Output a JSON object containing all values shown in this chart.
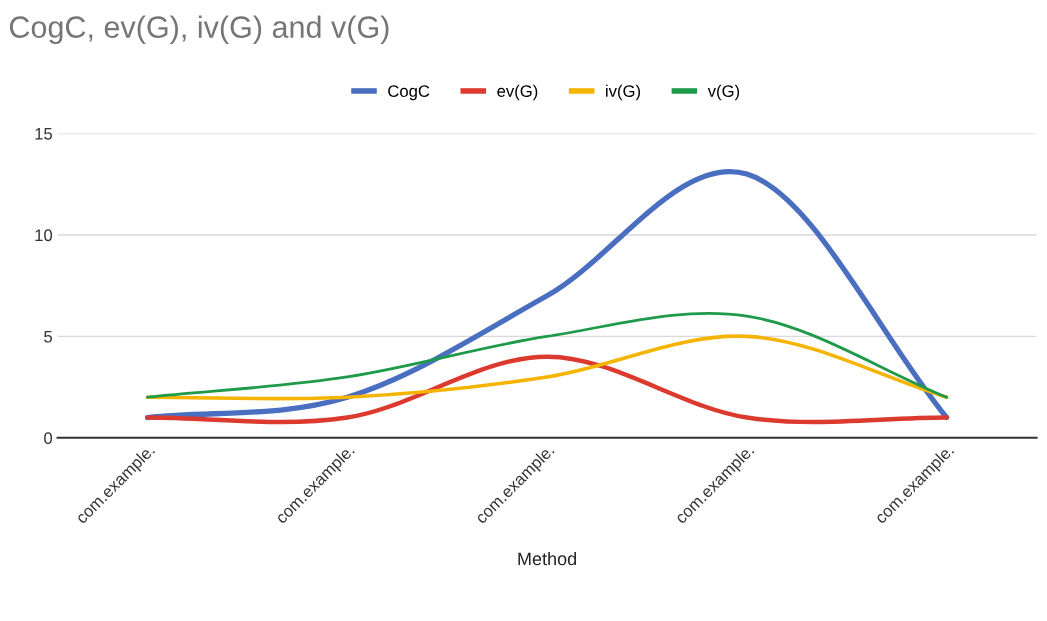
{
  "chart_data": {
    "type": "line",
    "title": "CogC, ev(G), iv(G) and v(G)",
    "xlabel": "Method",
    "categories": [
      "com.example.",
      "com.example.",
      "com.example.",
      "com.example.",
      "com.example."
    ],
    "series": [
      {
        "name": "CogC",
        "color": "#4a6fc0",
        "values": [
          1,
          2,
          7,
          13,
          1
        ]
      },
      {
        "name": "ev(G)",
        "color": "#dc3a2e",
        "values": [
          1,
          1,
          4,
          1,
          1
        ]
      },
      {
        "name": "iv(G)",
        "color": "#f4b400",
        "values": [
          2,
          2,
          3,
          5,
          2
        ]
      },
      {
        "name": "v(G)",
        "color": "#1e9a4a",
        "values": [
          2,
          3,
          5,
          6,
          2
        ]
      }
    ],
    "ylim": [
      0,
      15
    ],
    "yticks": [
      0,
      5,
      10,
      15
    ],
    "grid": "y",
    "legend": "top",
    "marker": "none",
    "line_style": "solid"
  }
}
